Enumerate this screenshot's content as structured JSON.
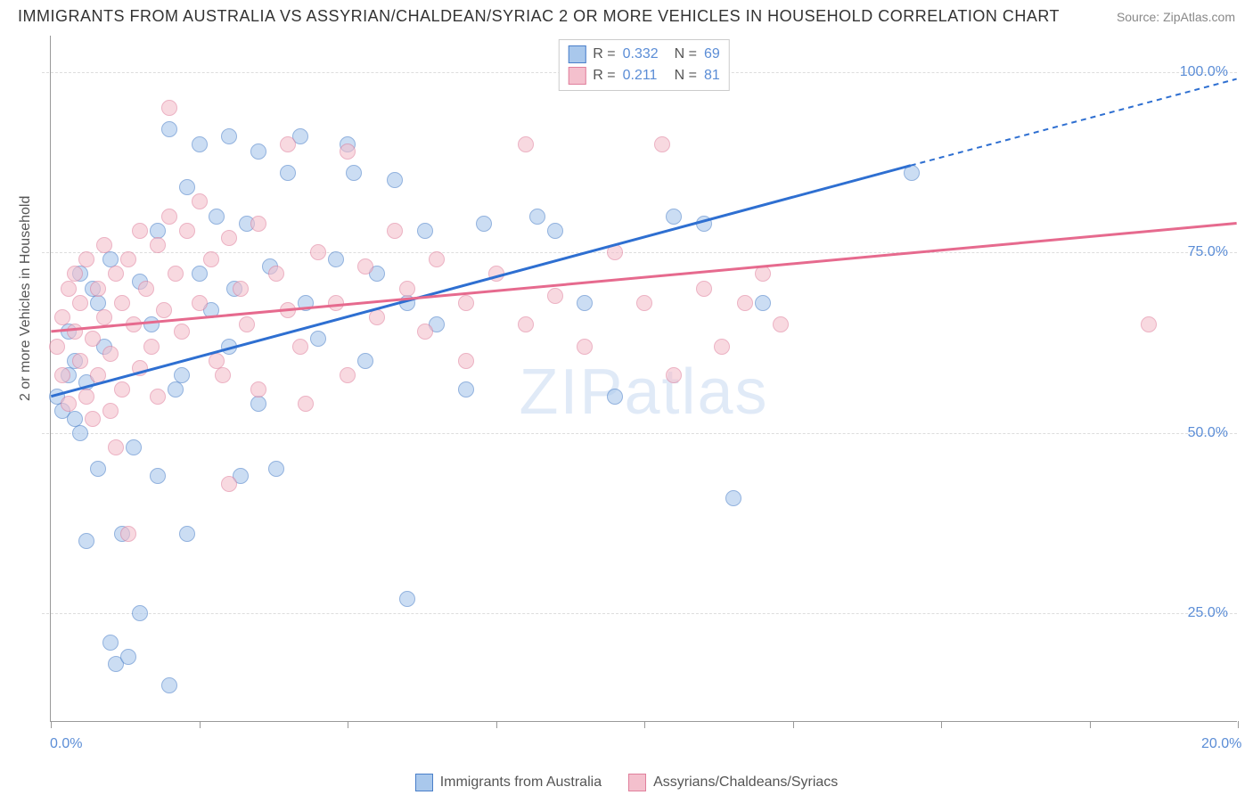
{
  "title": "IMMIGRANTS FROM AUSTRALIA VS ASSYRIAN/CHALDEAN/SYRIAC 2 OR MORE VEHICLES IN HOUSEHOLD CORRELATION CHART",
  "source": "Source: ZipAtlas.com",
  "watermark_text": "ZIPatlas",
  "y_axis_label": "2 or more Vehicles in Household",
  "chart": {
    "type": "scatter",
    "x_range": [
      0,
      20
    ],
    "y_range": [
      10,
      105
    ],
    "y_ticks": [
      25,
      50,
      75,
      100
    ],
    "y_tick_labels": [
      "25.0%",
      "50.0%",
      "75.0%",
      "100.0%"
    ],
    "x_ticks": [
      0,
      2.5,
      5,
      7.5,
      10,
      12.5,
      15,
      17.5,
      20
    ],
    "x_tick_labels": {
      "0": "0.0%",
      "20": "20.0%"
    },
    "grid_color": "#dddddd",
    "axis_color": "#999999",
    "background_color": "#ffffff",
    "marker_size": 18,
    "marker_opacity": 0.6
  },
  "series": [
    {
      "name": "Immigrants from Australia",
      "fill_color": "#a9c8ec",
      "stroke_color": "#4a7fc9",
      "line_color": "#2e6fd1",
      "R": "0.332",
      "N": "69",
      "trend": {
        "x1": 0,
        "y1": 55,
        "x2_solid": 14.5,
        "y2_solid": 87,
        "x2_dash": 20,
        "y2_dash": 99
      },
      "points": [
        [
          0.1,
          55
        ],
        [
          0.2,
          53
        ],
        [
          0.3,
          58
        ],
        [
          0.3,
          64
        ],
        [
          0.4,
          60
        ],
        [
          0.4,
          52
        ],
        [
          0.5,
          72
        ],
        [
          0.5,
          50
        ],
        [
          0.6,
          57
        ],
        [
          0.6,
          35
        ],
        [
          0.8,
          68
        ],
        [
          0.8,
          45
        ],
        [
          0.9,
          62
        ],
        [
          1.0,
          74
        ],
        [
          1.0,
          21
        ],
        [
          1.1,
          18
        ],
        [
          1.2,
          36
        ],
        [
          1.3,
          19
        ],
        [
          1.5,
          71
        ],
        [
          1.5,
          25
        ],
        [
          1.7,
          65
        ],
        [
          1.8,
          78
        ],
        [
          1.8,
          44
        ],
        [
          2.0,
          92
        ],
        [
          2.0,
          15
        ],
        [
          2.1,
          56
        ],
        [
          2.3,
          84
        ],
        [
          2.3,
          36
        ],
        [
          2.5,
          90
        ],
        [
          2.5,
          72
        ],
        [
          2.7,
          67
        ],
        [
          2.8,
          80
        ],
        [
          3.0,
          91
        ],
        [
          3.0,
          62
        ],
        [
          3.2,
          44
        ],
        [
          3.3,
          79
        ],
        [
          3.5,
          89
        ],
        [
          3.5,
          54
        ],
        [
          3.7,
          73
        ],
        [
          3.8,
          45
        ],
        [
          4.0,
          86
        ],
        [
          4.2,
          91
        ],
        [
          4.3,
          68
        ],
        [
          4.5,
          63
        ],
        [
          4.8,
          74
        ],
        [
          5.0,
          90
        ],
        [
          5.1,
          86
        ],
        [
          5.3,
          60
        ],
        [
          5.5,
          72
        ],
        [
          5.8,
          85
        ],
        [
          6.0,
          68
        ],
        [
          6.0,
          27
        ],
        [
          6.3,
          78
        ],
        [
          6.5,
          65
        ],
        [
          7.0,
          56
        ],
        [
          7.3,
          79
        ],
        [
          8.2,
          80
        ],
        [
          8.5,
          78
        ],
        [
          9.0,
          68
        ],
        [
          9.5,
          55
        ],
        [
          10.5,
          80
        ],
        [
          11.0,
          79
        ],
        [
          11.5,
          41
        ],
        [
          12.0,
          68
        ],
        [
          14.5,
          86
        ],
        [
          0.7,
          70
        ],
        [
          1.4,
          48
        ],
        [
          2.2,
          58
        ],
        [
          3.1,
          70
        ]
      ]
    },
    {
      "name": "Assyrians/Chaldeans/Syriacs",
      "fill_color": "#f4c0cd",
      "stroke_color": "#e07f9c",
      "line_color": "#e66a8e",
      "R": "0.211",
      "N": "81",
      "trend": {
        "x1": 0,
        "y1": 64,
        "x2_solid": 20,
        "y2_solid": 79,
        "x2_dash": 20,
        "y2_dash": 79
      },
      "points": [
        [
          0.1,
          62
        ],
        [
          0.2,
          66
        ],
        [
          0.2,
          58
        ],
        [
          0.3,
          70
        ],
        [
          0.3,
          54
        ],
        [
          0.4,
          64
        ],
        [
          0.4,
          72
        ],
        [
          0.5,
          60
        ],
        [
          0.5,
          68
        ],
        [
          0.6,
          55
        ],
        [
          0.6,
          74
        ],
        [
          0.7,
          63
        ],
        [
          0.7,
          52
        ],
        [
          0.8,
          70
        ],
        [
          0.8,
          58
        ],
        [
          0.9,
          76
        ],
        [
          0.9,
          66
        ],
        [
          1.0,
          61
        ],
        [
          1.0,
          53
        ],
        [
          1.1,
          72
        ],
        [
          1.2,
          68
        ],
        [
          1.2,
          56
        ],
        [
          1.3,
          74
        ],
        [
          1.3,
          36
        ],
        [
          1.4,
          65
        ],
        [
          1.5,
          78
        ],
        [
          1.5,
          59
        ],
        [
          1.6,
          70
        ],
        [
          1.7,
          62
        ],
        [
          1.8,
          76
        ],
        [
          1.8,
          55
        ],
        [
          1.9,
          67
        ],
        [
          2.0,
          80
        ],
        [
          2.0,
          95
        ],
        [
          2.1,
          72
        ],
        [
          2.2,
          64
        ],
        [
          2.3,
          78
        ],
        [
          2.5,
          68
        ],
        [
          2.5,
          82
        ],
        [
          2.7,
          74
        ],
        [
          2.8,
          60
        ],
        [
          3.0,
          77
        ],
        [
          3.0,
          43
        ],
        [
          3.2,
          70
        ],
        [
          3.3,
          65
        ],
        [
          3.5,
          79
        ],
        [
          3.5,
          56
        ],
        [
          3.8,
          72
        ],
        [
          4.0,
          67
        ],
        [
          4.0,
          90
        ],
        [
          4.2,
          62
        ],
        [
          4.5,
          75
        ],
        [
          4.8,
          68
        ],
        [
          5.0,
          89
        ],
        [
          5.0,
          58
        ],
        [
          5.3,
          73
        ],
        [
          5.5,
          66
        ],
        [
          5.8,
          78
        ],
        [
          6.0,
          70
        ],
        [
          6.3,
          64
        ],
        [
          6.5,
          74
        ],
        [
          7.0,
          68
        ],
        [
          7.0,
          60
        ],
        [
          7.5,
          72
        ],
        [
          8.0,
          65
        ],
        [
          8.0,
          90
        ],
        [
          8.5,
          69
        ],
        [
          9.0,
          62
        ],
        [
          9.5,
          75
        ],
        [
          10.0,
          68
        ],
        [
          10.3,
          90
        ],
        [
          10.5,
          58
        ],
        [
          11.0,
          70
        ],
        [
          11.3,
          62
        ],
        [
          11.7,
          68
        ],
        [
          12.0,
          72
        ],
        [
          12.3,
          65
        ],
        [
          18.5,
          65
        ],
        [
          4.3,
          54
        ],
        [
          2.9,
          58
        ],
        [
          1.1,
          48
        ]
      ]
    }
  ],
  "legend_top": {
    "rows": [
      {
        "swatch": 0,
        "r_label": "R =",
        "r_val": "0.332",
        "n_label": "N =",
        "n_val": "69"
      },
      {
        "swatch": 1,
        "r_label": "R =",
        "r_val": "0.211",
        "n_label": "N =",
        "n_val": "81"
      }
    ]
  },
  "legend_bottom": [
    {
      "swatch": 0,
      "label": "Immigrants from Australia"
    },
    {
      "swatch": 1,
      "label": "Assyrians/Chaldeans/Syriacs"
    }
  ]
}
